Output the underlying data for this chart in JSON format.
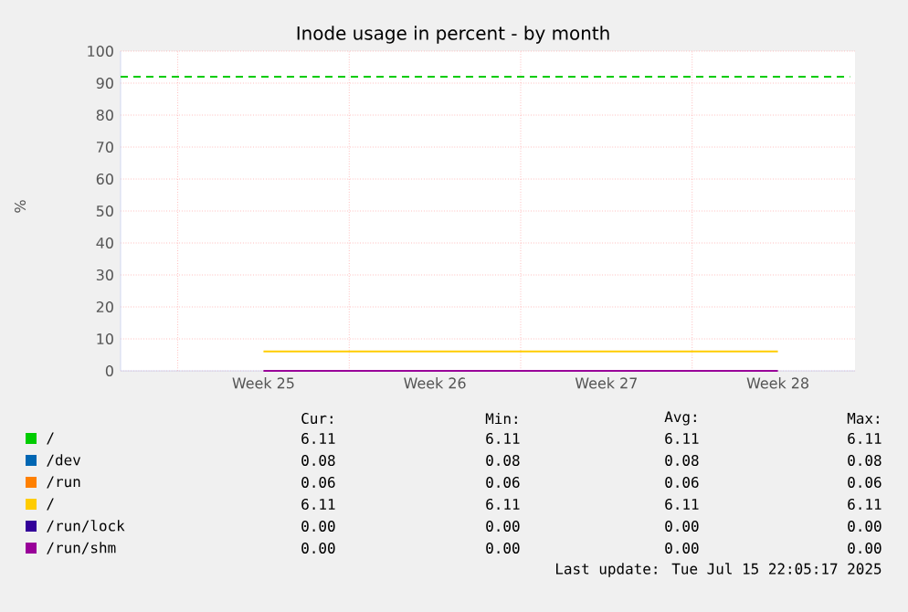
{
  "chart_data": {
    "type": "line",
    "title": "Inode usage in percent - by month",
    "ylabel": "%",
    "categories": [
      "Week 25",
      "Week 26",
      "Week 27",
      "Week 28"
    ],
    "ylim": [
      0,
      100
    ],
    "yticks": [
      0,
      10,
      20,
      30,
      40,
      50,
      60,
      70,
      80,
      90,
      100
    ],
    "grid": true,
    "legend": "bottom",
    "series": [
      {
        "name": "/",
        "color": "#00cc00",
        "values": [
          null,
          null,
          null,
          null
        ]
      },
      {
        "name": "/dev",
        "color": "#0066b3",
        "values": [
          null,
          null,
          null,
          null
        ]
      },
      {
        "name": "/run",
        "color": "#ff8000",
        "values": [
          null,
          null,
          null,
          null
        ]
      },
      {
        "name": "/",
        "color": "#ffcc00",
        "values": [
          6.11,
          6.11,
          6.11,
          6.11
        ]
      },
      {
        "name": "/run/lock",
        "color": "#330099",
        "values": [
          null,
          null,
          null,
          null
        ]
      },
      {
        "name": "/run/shm",
        "color": "#990099",
        "values": [
          0,
          0,
          0,
          0
        ]
      }
    ],
    "ref_lines": [
      {
        "axis": "y",
        "value": 92,
        "color": "#00cc00",
        "line_style": "dashed"
      }
    ],
    "annotations": [
      "Cur:",
      "Min:",
      "Avg:",
      "Max:",
      "6.11",
      "6.11",
      "6.11",
      "6.11",
      "0.08",
      "0.08",
      "0.08",
      "0.08",
      "0.06",
      "0.06",
      "0.06",
      "0.06",
      "6.11",
      "6.11",
      "6.11",
      "6.11",
      "0.00",
      "0.00",
      "0.00",
      "0.00",
      "0.00",
      "0.00",
      "0.00",
      "0.00",
      "Last update: Tue Jul 15 22:05:17 2025"
    ]
  }
}
